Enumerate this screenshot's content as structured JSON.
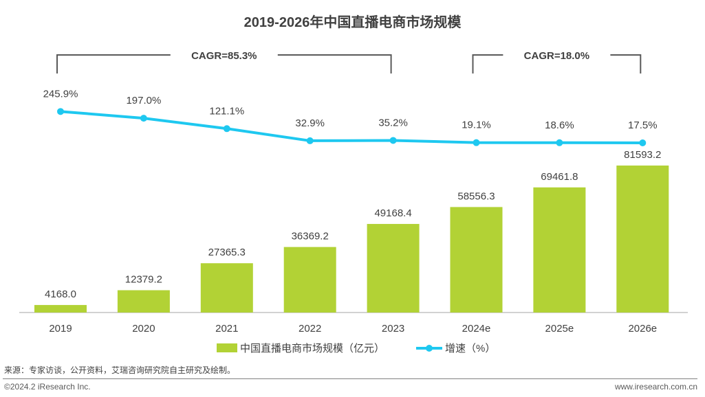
{
  "chart_data": {
    "type": "bar+line",
    "title": "2019-2026年中国直播电商市场规模",
    "categories": [
      "2019",
      "2020",
      "2021",
      "2022",
      "2023",
      "2024e",
      "2025e",
      "2026e"
    ],
    "series": [
      {
        "name": "中国直播电商市场规模（亿元）",
        "type": "bar",
        "color": "#b2d235",
        "values": [
          4168.0,
          12379.2,
          27365.3,
          36369.2,
          49168.4,
          58556.3,
          69461.8,
          81593.2
        ],
        "labels": [
          "4168.0",
          "12379.2",
          "27365.3",
          "36369.2",
          "49168.4",
          "58556.3",
          "69461.8",
          "81593.2"
        ]
      },
      {
        "name": "增速（%）",
        "type": "line",
        "color": "#1ec8f0",
        "values": [
          245.9,
          197.0,
          121.1,
          32.9,
          35.2,
          19.1,
          18.6,
          17.5
        ],
        "labels": [
          "245.9%",
          "197.0%",
          "121.1%",
          "32.9%",
          "35.2%",
          "19.1%",
          "18.6%",
          "17.5%"
        ]
      }
    ],
    "annotations": [
      {
        "text": "CAGR=85.3%",
        "from": "2019",
        "to": "2023"
      },
      {
        "text": "CAGR=18.0%",
        "from": "2024e",
        "to": "2026e"
      }
    ],
    "legend": "bottom",
    "grid": false
  },
  "footer": {
    "source": "来源：专家访谈，公开资料，艾瑞咨询研究院自主研究及绘制。",
    "copyright": "©2024.2 iResearch Inc.",
    "url": "www.iresearch.com.cn"
  }
}
